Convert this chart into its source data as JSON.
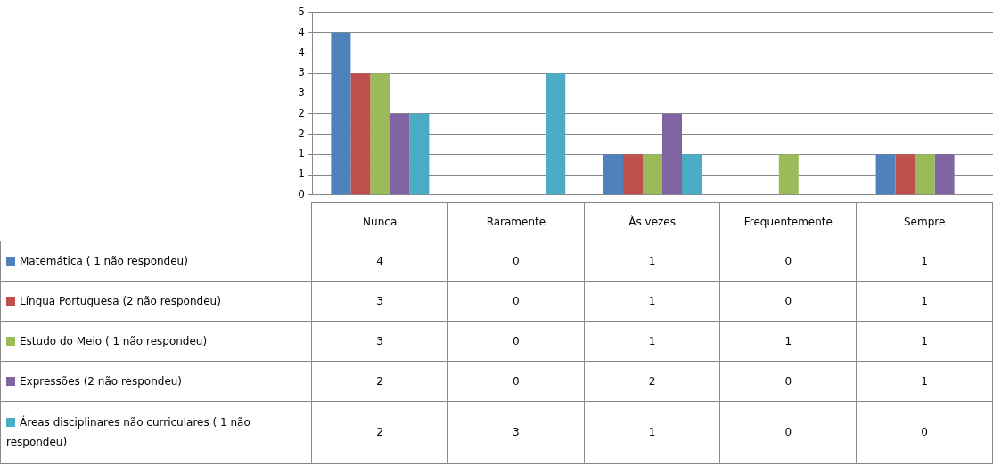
{
  "chart_data": {
    "type": "bar",
    "categories": [
      "Nunca",
      "Raramente",
      "Às vezes",
      "Frequentemente",
      "Sempre"
    ],
    "series": [
      {
        "name": "Matemática ( 1 não respondeu)",
        "color": "#4f81bd",
        "values": [
          4,
          0,
          1,
          0,
          1
        ]
      },
      {
        "name": "Língua Portuguesa (2 não respondeu)",
        "color": "#c0504d",
        "values": [
          3,
          0,
          1,
          0,
          1
        ]
      },
      {
        "name": "Estudo do Meio ( 1 não respondeu)",
        "color": "#9bbb59",
        "values": [
          3,
          0,
          1,
          1,
          1
        ]
      },
      {
        "name": "Expressões  (2 não respondeu)",
        "color": "#8064a2",
        "values": [
          2,
          0,
          2,
          0,
          1
        ]
      },
      {
        "name": "Áreas disciplinares não curriculares ( 1 não respondeu)",
        "color": "#4bacc6",
        "values": [
          2,
          3,
          1,
          0,
          0
        ]
      }
    ],
    "ylim": [
      0,
      4.5
    ],
    "yticks": [
      0,
      {
        "value": 0.5,
        "label": "1"
      },
      1,
      {
        "value": 1.5,
        "label": "2"
      },
      2,
      {
        "value": 2.5,
        "label": "3"
      },
      3,
      {
        "value": 3.5,
        "label": "4"
      },
      4,
      {
        "value": 4.5,
        "label": "5"
      }
    ],
    "grid": "y",
    "legend": "bottom left",
    "data_labels": true
  }
}
